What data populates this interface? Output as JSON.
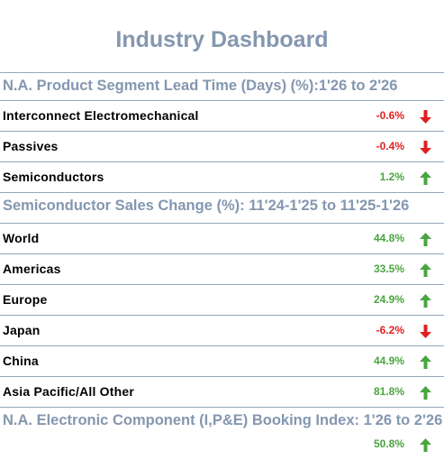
{
  "title": "Industry Dashboard",
  "colors": {
    "up": "#4aa540",
    "down": "#e02020",
    "heading": "#8497b0"
  },
  "sections": [
    {
      "heading": "N.A. Product Segment Lead Time (Days) (%):1'26 to 2'26",
      "rows": [
        {
          "label": "Interconnect Electromechanical",
          "value": "-0.6%",
          "direction": "down"
        },
        {
          "label": "Passives",
          "value": "-0.4%",
          "direction": "down"
        },
        {
          "label": "Semiconductors",
          "value": "1.2%",
          "direction": "up"
        }
      ]
    },
    {
      "heading": "Semiconductor Sales Change (%): 11'24-1'25 to 11'25-1'26",
      "rows": [
        {
          "label": "World",
          "value": "44.8%",
          "direction": "up"
        },
        {
          "label": "Americas",
          "value": "33.5%",
          "direction": "up"
        },
        {
          "label": "Europe",
          "value": "24.9%",
          "direction": "up"
        },
        {
          "label": "Japan",
          "value": "-6.2%",
          "direction": "down"
        },
        {
          "label": "China",
          "value": "44.9%",
          "direction": "up"
        },
        {
          "label": "Asia Pacific/All Other",
          "value": "81.8%",
          "direction": "up"
        }
      ]
    },
    {
      "heading": "N.A. Electronic Component (I,P&E) Booking Index: 1'26 to 2'26",
      "rows": [
        {
          "label": "",
          "value": "50.8%",
          "direction": "up"
        }
      ]
    }
  ]
}
